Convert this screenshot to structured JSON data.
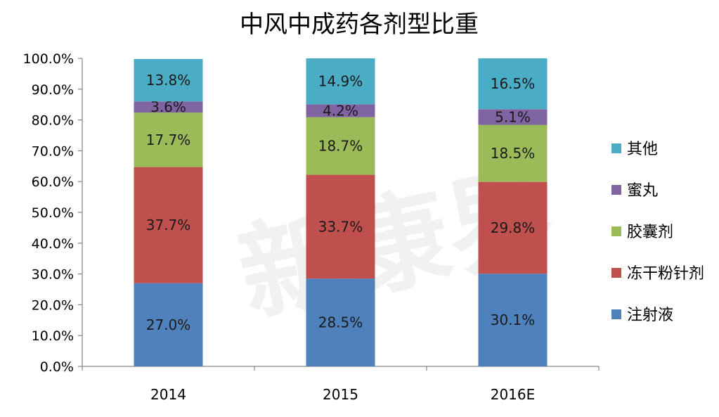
{
  "chart_data": {
    "type": "bar",
    "stacked": true,
    "title": "中风中成药各剂型比重",
    "xlabel": "",
    "ylabel": "",
    "categories": [
      "2014",
      "2015",
      "2016E"
    ],
    "y_ticks": [
      "0.0%",
      "10.0%",
      "20.0%",
      "30.0%",
      "40.0%",
      "50.0%",
      "60.0%",
      "70.0%",
      "80.0%",
      "90.0%",
      "100.0%"
    ],
    "ylim": [
      0,
      100
    ],
    "grid": false,
    "legend_position": "right",
    "series": [
      {
        "name": "注射液",
        "color": "#4F81BD",
        "values": [
          27.0,
          28.5,
          30.1
        ],
        "labels": [
          "27.0%",
          "28.5%",
          "30.1%"
        ]
      },
      {
        "name": "冻干粉针剂",
        "color": "#C0504D",
        "values": [
          37.7,
          33.7,
          29.8
        ],
        "labels": [
          "37.7%",
          "33.7%",
          "29.8%"
        ]
      },
      {
        "name": "胶囊剂",
        "color": "#9BBB59",
        "values": [
          17.7,
          18.7,
          18.5
        ],
        "labels": [
          "17.7%",
          "18.7%",
          "18.5%"
        ]
      },
      {
        "name": "蜜丸",
        "color": "#8064A2",
        "values": [
          3.6,
          4.2,
          5.1
        ],
        "labels": [
          "3.6%",
          "4.2%",
          "5.1%"
        ]
      },
      {
        "name": "其他",
        "color": "#4BACC6",
        "values": [
          13.8,
          14.9,
          16.5
        ],
        "labels": [
          "13.8%",
          "14.9%",
          "16.5%"
        ]
      }
    ],
    "legend_order": [
      "其他",
      "蜜丸",
      "胶囊剂",
      "冻干粉针剂",
      "注射液"
    ]
  },
  "watermark": {
    "text": "新康界"
  }
}
